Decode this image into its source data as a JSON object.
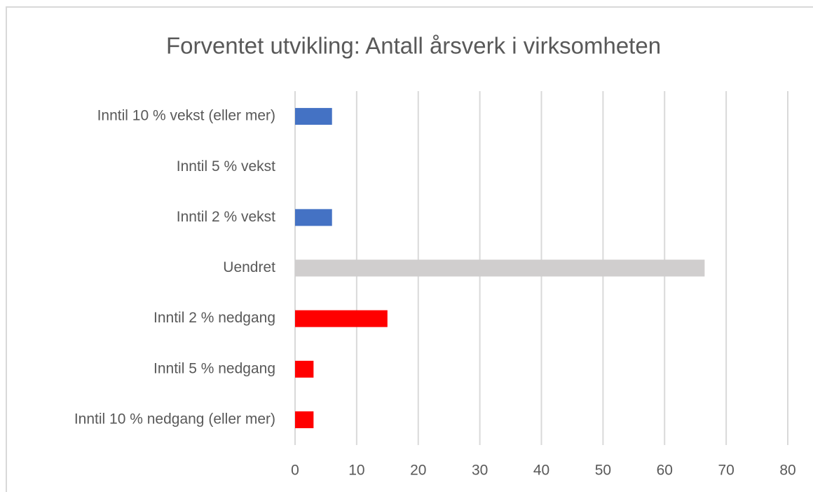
{
  "chart_data": {
    "type": "bar",
    "orientation": "horizontal",
    "title": "Forventet utvikling: Antall årsverk i virksomheten",
    "categories": [
      "Inntil 10 % vekst (eller mer)",
      "Inntil 5 % vekst",
      "Inntil 2 % vekst",
      "Uendret",
      "Inntil 2 % nedgang",
      "Inntil 5 % nedgang",
      "Inntil 10 % nedgang (eller mer)"
    ],
    "values": [
      6,
      0,
      6,
      66.5,
      15,
      3,
      3
    ],
    "colors": [
      "#4472c4",
      "#4472c4",
      "#4472c4",
      "#d0cece",
      "#ff0000",
      "#ff0000",
      "#ff0000"
    ],
    "xlim": [
      0,
      80
    ],
    "xticks": [
      0,
      10,
      20,
      30,
      40,
      50,
      60,
      70,
      80
    ],
    "grid": true
  }
}
